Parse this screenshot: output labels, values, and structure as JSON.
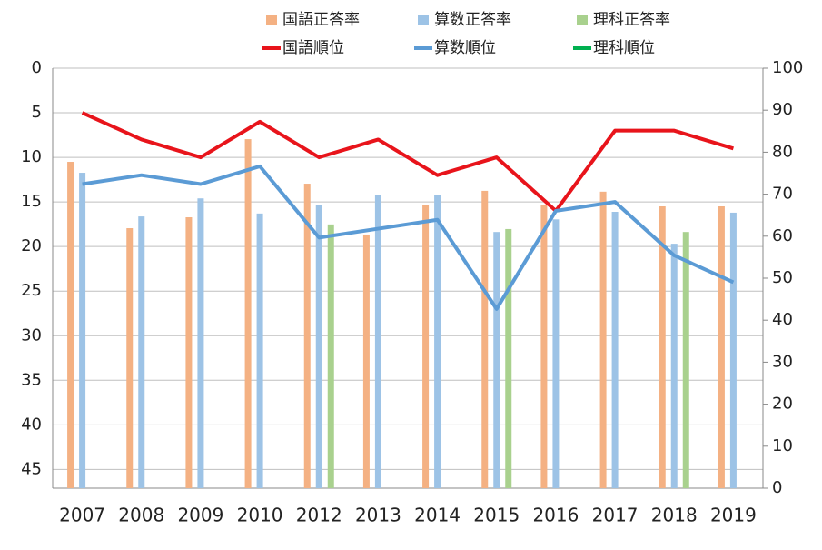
{
  "chart_data": {
    "type": "combo",
    "categories": [
      "2007",
      "2008",
      "2009",
      "2010",
      "2012",
      "2013",
      "2014",
      "2015",
      "2016",
      "2017",
      "2018",
      "2019"
    ],
    "ylim": [
      0,
      47.1
    ],
    "yinverted": true,
    "yticks": [
      0,
      5,
      10,
      15,
      20,
      25,
      30,
      35,
      40,
      45
    ],
    "y2lim": [
      0,
      100
    ],
    "y2ticks": [
      0,
      10,
      20,
      30,
      40,
      50,
      60,
      70,
      80,
      90,
      100
    ],
    "grid": true,
    "series": [
      {
        "name": "国語正答率",
        "type": "bar",
        "axis": "y2",
        "color": "#f4b183",
        "values": [
          77.7,
          61.9,
          64.5,
          83.1,
          72.5,
          60.4,
          67.5,
          70.8,
          67.5,
          70.6,
          67.1,
          67.1
        ]
      },
      {
        "name": "算数正答率",
        "type": "bar",
        "axis": "y2",
        "color": "#9dc3e6",
        "values": [
          75.1,
          64.7,
          69.0,
          65.4,
          67.5,
          69.9,
          69.9,
          61.0,
          64.0,
          65.8,
          58.2,
          65.6
        ]
      },
      {
        "name": "理科正答率",
        "type": "bar",
        "axis": "y2",
        "color": "#a9d18e",
        "values": [
          null,
          null,
          null,
          null,
          62.8,
          null,
          null,
          61.7,
          null,
          null,
          61.0,
          null
        ]
      },
      {
        "name": "国語順位",
        "type": "line",
        "color": "#e8141b",
        "values": [
          5,
          8,
          10,
          6,
          10,
          8,
          12,
          10,
          16,
          7,
          7,
          9
        ]
      },
      {
        "name": "算数順位",
        "type": "line",
        "color": "#5b9bd5",
        "values": [
          13,
          12,
          13,
          11,
          19,
          18,
          17,
          27,
          16,
          15,
          21,
          24
        ]
      },
      {
        "name": "理科順位",
        "type": "line",
        "color": "#00b050",
        "values": [
          null,
          null,
          null,
          null,
          null,
          null,
          null,
          null,
          null,
          null,
          null,
          null
        ]
      }
    ]
  }
}
